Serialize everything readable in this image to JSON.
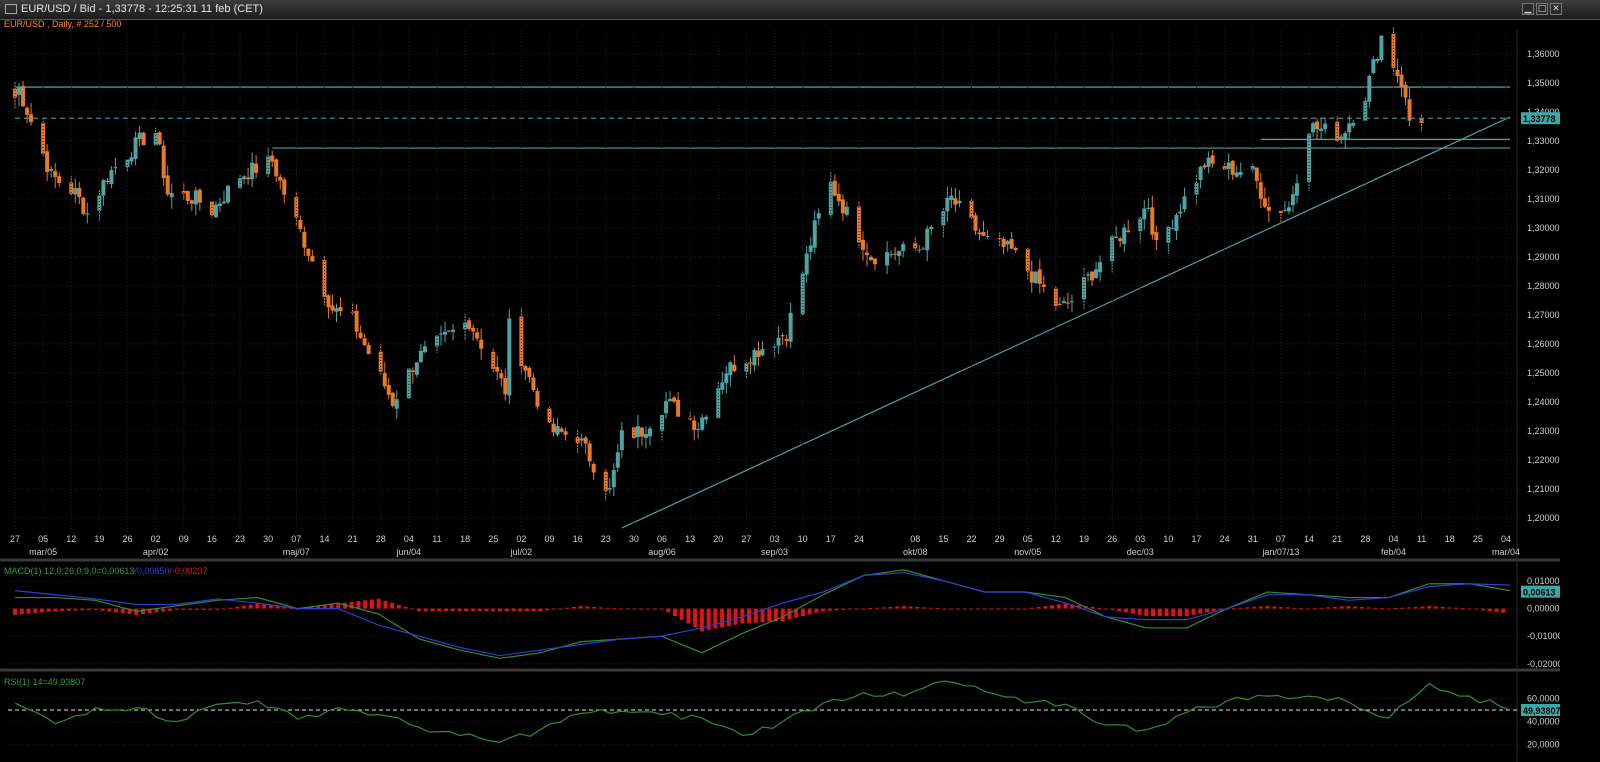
{
  "window": {
    "title": "EUR/USD / Bid - 1,33778 - 12:25:31  11 feb (CET)",
    "subtitle": "EUR/USD , Daily, # 252 / 500",
    "minimize": "▁",
    "maximize": "□",
    "close": "✕"
  },
  "colors": {
    "background": "#000000",
    "grid": "#1f1f1f",
    "bull_candle": "#4ea3a3",
    "bear_candle": "#e8782a",
    "trendline": "#4ea3a3",
    "macd_line": "#2f8f2f",
    "signal_line": "#2c3fd6",
    "histogram": "#e01212",
    "rsi_line": "#2f8f2f",
    "axis_text": "#cfcfcf",
    "date_label": "#e8782a"
  },
  "chart_data": [
    {
      "type": "candlestick",
      "title": "EUR/USD",
      "timeframe": "Daily",
      "last_price": "1,33778",
      "y_ticks": [
        "1,36000",
        "1,35000",
        "1,34000",
        "1,33000",
        "1,32000",
        "1,31000",
        "1,30000",
        "1,29000",
        "1,28000",
        "1,27000",
        "1,26000",
        "1,25000",
        "1,24000",
        "1,23000",
        "1,22000",
        "1,21000",
        "1,20000"
      ],
      "ylim": [
        1.1965,
        1.3682
      ],
      "x_day_labels": [
        "27",
        "05",
        "12",
        "19",
        "26",
        "02",
        "09",
        "16",
        "23",
        "30",
        "07",
        "14",
        "21",
        "28",
        "04",
        "11",
        "18",
        "25",
        "02",
        "09",
        "16",
        "23",
        "30",
        "06",
        "13",
        "20",
        "27",
        "03",
        "10",
        "17",
        "24",
        "08",
        "15",
        "22",
        "29",
        "05",
        "12",
        "19",
        "26",
        "03",
        "10",
        "17",
        "24",
        "31",
        "07",
        "14",
        "21",
        "28",
        "04",
        "11",
        "18",
        "25",
        "04"
      ],
      "x_month_labels": [
        "mar/05",
        "apr/02",
        "maj/07",
        "jun/04",
        "jul/02",
        "aug/06",
        "sep/03",
        "okt/08",
        "nov/05",
        "dec/03",
        "jan/07/13",
        "feb/04",
        "mar/04"
      ],
      "anchors": [
        [
          "2012-02-27",
          1.345
        ],
        [
          "2012-02-28",
          1.348
        ],
        [
          "2012-03-07",
          1.318
        ],
        [
          "2012-03-13",
          1.312
        ],
        [
          "2012-03-16",
          1.305
        ],
        [
          "2012-03-21",
          1.318
        ],
        [
          "2012-03-29",
          1.33
        ],
        [
          "2012-04-02",
          1.333
        ],
        [
          "2012-04-05",
          1.312
        ],
        [
          "2012-04-12",
          1.31
        ],
        [
          "2012-04-16",
          1.306
        ],
        [
          "2012-04-23",
          1.318
        ],
        [
          "2012-05-01",
          1.323
        ],
        [
          "2012-05-04",
          1.312
        ],
        [
          "2012-05-10",
          1.292
        ],
        [
          "2012-05-16",
          1.272
        ],
        [
          "2012-05-21",
          1.268
        ],
        [
          "2012-05-31",
          1.24
        ],
        [
          "2012-06-06",
          1.255
        ],
        [
          "2012-06-19",
          1.268
        ],
        [
          "2012-06-28",
          1.244
        ],
        [
          "2012-06-29",
          1.266
        ],
        [
          "2012-07-09",
          1.23
        ],
        [
          "2012-07-16",
          1.228
        ],
        [
          "2012-07-24",
          1.209
        ],
        [
          "2012-07-27",
          1.228
        ],
        [
          "2012-08-01",
          1.23
        ],
        [
          "2012-08-07",
          1.24
        ],
        [
          "2012-08-15",
          1.232
        ],
        [
          "2012-08-22",
          1.251
        ],
        [
          "2012-09-06",
          1.264
        ],
        [
          "2012-09-13",
          1.3
        ],
        [
          "2012-09-17",
          1.315
        ],
        [
          "2012-09-27",
          1.29
        ],
        [
          "2012-10-09",
          1.293
        ],
        [
          "2012-10-17",
          1.31
        ],
        [
          "2012-10-25",
          1.296
        ],
        [
          "2012-11-01",
          1.292
        ],
        [
          "2012-11-13",
          1.272
        ],
        [
          "2012-11-16",
          1.275
        ],
        [
          "2012-11-27",
          1.296
        ],
        [
          "2012-12-05",
          1.308
        ],
        [
          "2012-12-07",
          1.293
        ],
        [
          "2012-12-19",
          1.322
        ],
        [
          "2012-12-31",
          1.319
        ],
        [
          "2013-01-04",
          1.306
        ],
        [
          "2013-01-09",
          1.307
        ],
        [
          "2013-01-14",
          1.335
        ],
        [
          "2013-01-22",
          1.332
        ],
        [
          "2013-01-28",
          1.346
        ],
        [
          "2013-02-01",
          1.366
        ],
        [
          "2013-02-06",
          1.35
        ],
        [
          "2013-02-08",
          1.337
        ],
        [
          "2013-02-11",
          1.33778
        ]
      ],
      "lines": [
        {
          "name": "resistance",
          "x1": "2012-02-27",
          "y1": 1.3485,
          "x2": "2013-03-05",
          "y2": 1.3485
        },
        {
          "name": "support-1",
          "x1": "2012-05-01",
          "y1": 1.3275,
          "x2": "2013-03-05",
          "y2": 1.3275
        },
        {
          "name": "support-2",
          "x1": "2013-01-02",
          "y1": 1.3305,
          "x2": "2013-03-05",
          "y2": 1.3305
        },
        {
          "name": "uptrend",
          "x1": "2012-07-27",
          "y1": 1.1965,
          "x2": "2013-03-05",
          "y2": 1.3382
        },
        {
          "name": "last-price",
          "x1": "2012-02-27",
          "y1": 1.33778,
          "x2": "2013-03-05",
          "y2": 1.33778
        }
      ]
    },
    {
      "type": "line",
      "title": "MACD(1) 12,0;26,0;9,0",
      "header_values": [
        "MACD(1) 12,0;26,0;9,0=",
        "0,00613",
        "/",
        "0,00850",
        "/",
        "-0,00237"
      ],
      "current_value": "0,00613",
      "y_ticks": [
        "0,01000",
        "0,00000",
        "-0,01000",
        "-0,02000"
      ],
      "ylim": [
        -0.0215,
        0.0165
      ],
      "series": [
        {
          "name": "MACD",
          "values": [
            0.004,
            0.004,
            0.003,
            -0.001,
            0.001,
            0.003,
            0.004,
            0.0,
            0.002,
            -0.002,
            -0.011,
            -0.015,
            -0.018,
            -0.016,
            -0.012,
            -0.011,
            -0.01,
            -0.016,
            -0.009,
            -0.003,
            0.005,
            0.012,
            0.014,
            0.01,
            0.006,
            0.006,
            0.004,
            -0.003,
            -0.007,
            -0.007,
            0.0,
            0.006,
            0.005,
            0.004,
            0.004,
            0.009,
            0.009,
            0.0065
          ]
        },
        {
          "name": "Signal",
          "values": [
            0.0065,
            0.005,
            0.0035,
            0.0015,
            0.0015,
            0.0035,
            0.002,
            0.0,
            0.0,
            -0.006,
            -0.01,
            -0.014,
            -0.017,
            -0.015,
            -0.013,
            -0.011,
            -0.01,
            -0.007,
            -0.003,
            0.002,
            0.006,
            0.012,
            0.013,
            0.01,
            0.006,
            0.006,
            0.002,
            -0.003,
            -0.004,
            -0.004,
            0.0,
            0.005,
            0.005,
            0.003,
            0.004,
            0.008,
            0.009,
            0.0085
          ]
        }
      ]
    },
    {
      "type": "line",
      "title": "RSI(1) 14",
      "header_values": [
        "RSI(1) 14=",
        "49,93807"
      ],
      "current_value": "49,93807",
      "y_ticks": [
        "60,00000",
        "40,00000",
        "20,00000"
      ],
      "reference_level": 50,
      "ylim": [
        18,
        82
      ],
      "values": [
        56,
        38,
        52,
        52,
        40,
        55,
        58,
        42,
        52,
        46,
        35,
        28,
        22,
        33,
        47,
        49,
        46,
        43,
        28,
        40,
        56,
        65,
        62,
        75,
        66,
        56,
        55,
        37,
        33,
        48,
        58,
        62,
        62,
        57,
        43,
        73,
        62,
        50
      ]
    }
  ]
}
